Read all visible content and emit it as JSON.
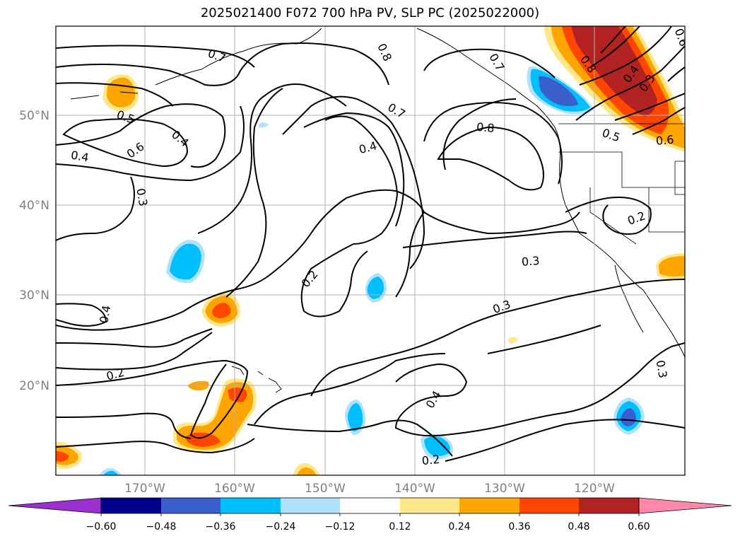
{
  "title": "2025021400 F072 700 hPa PV, SLP PC (2025022000)",
  "latitude_labels": [
    "50°N",
    "40°N",
    "30°N",
    "20°N"
  ],
  "longitude_labels": [
    "170°W",
    "160°W",
    "150°W",
    "140°W",
    "130°W",
    "120°W"
  ],
  "colorbar": {
    "ticks": [
      "−0.60",
      "−0.48",
      "−0.36",
      "−0.24",
      "−0.12",
      "0.12",
      "0.24",
      "0.36",
      "0.48",
      "0.60"
    ],
    "colors": [
      "#9b30d0",
      "#00008b",
      "#3a5fcd",
      "#00bfff",
      "#b0e2ff",
      "#ffffff",
      "#ffe88a",
      "#ffa500",
      "#ff4500",
      "#b22222",
      "#ff88aa"
    ]
  },
  "contour_labels": [
    "0.7",
    "0.8",
    "0.7",
    "0.5",
    "0.6",
    "0.4",
    "0.4",
    "0.3",
    "0.4",
    "0.7",
    "0.8",
    "0.4",
    "0.8",
    "0.5",
    "0.6",
    "0.2",
    "0.3",
    "0.2",
    "0.3",
    "0.4",
    "0.2",
    "0.4",
    "0.2",
    "0.3",
    "0.3",
    "0.6"
  ]
}
